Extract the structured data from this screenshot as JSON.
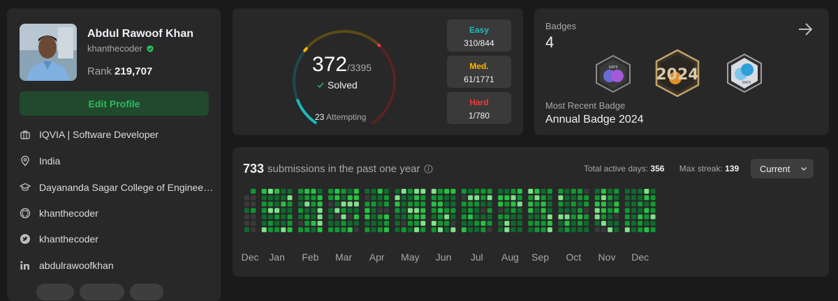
{
  "profile": {
    "name": "Abdul Rawoof Khan",
    "username": "khanthecoder",
    "rank_label": "Rank",
    "rank_value": "219,707",
    "edit_button": "Edit Profile",
    "info": [
      {
        "icon": "briefcase-icon",
        "text": "IQVIA | Software Developer"
      },
      {
        "icon": "location-pin-icon",
        "text": "India"
      },
      {
        "icon": "graduation-cap-icon",
        "text": "Dayananda Sagar College of Engineering"
      },
      {
        "icon": "github-icon",
        "text": "khanthecoder"
      },
      {
        "icon": "twitter-icon",
        "text": "khanthecoder"
      },
      {
        "icon": "linkedin-icon",
        "text": "abdulrawoofkhan"
      }
    ]
  },
  "progress": {
    "solved": "372",
    "total": "/3395",
    "solved_label": "Solved",
    "attempting_count": "23",
    "attempting_label": "Attempting",
    "difficulties": [
      {
        "label": "Easy",
        "value": "310/844",
        "color": "#1cbaba"
      },
      {
        "label": "Med.",
        "value": "61/1771",
        "color": "#ffb700"
      },
      {
        "label": "Hard",
        "value": "1/780",
        "color": "#f63737"
      }
    ]
  },
  "badges": {
    "title": "Badges",
    "count": "4",
    "recent_label": "Most Recent Badge",
    "recent_name": "Annual Badge 2024",
    "items": [
      {
        "icon": "200-days-badge-icon",
        "text": "DAYS"
      },
      {
        "icon": "annual-2024-badge-icon",
        "text": "2024"
      },
      {
        "icon": "100-days-badge-icon",
        "text": "DAYS"
      }
    ]
  },
  "submissions": {
    "count": "733",
    "label": "submissions in the past one year",
    "active_days_label": "Total active days:",
    "active_days": "356",
    "max_streak_label": "Max streak:",
    "max_streak": "139",
    "dropdown_value": "Current",
    "months": [
      "Dec",
      "Jan",
      "Feb",
      "Mar",
      "Apr",
      "May",
      "Jun",
      "Jul",
      "Aug",
      "Sep",
      "Oct",
      "Nov",
      "Dec"
    ]
  },
  "colors": {
    "page_bg": "#1a1a1a",
    "card_bg": "#282828",
    "accent_green": "#2cbb5d",
    "heat_levels": [
      "#3a3a3a",
      "#0e6b2e",
      "#109932",
      "#28c244",
      "#7fe18b"
    ]
  }
}
